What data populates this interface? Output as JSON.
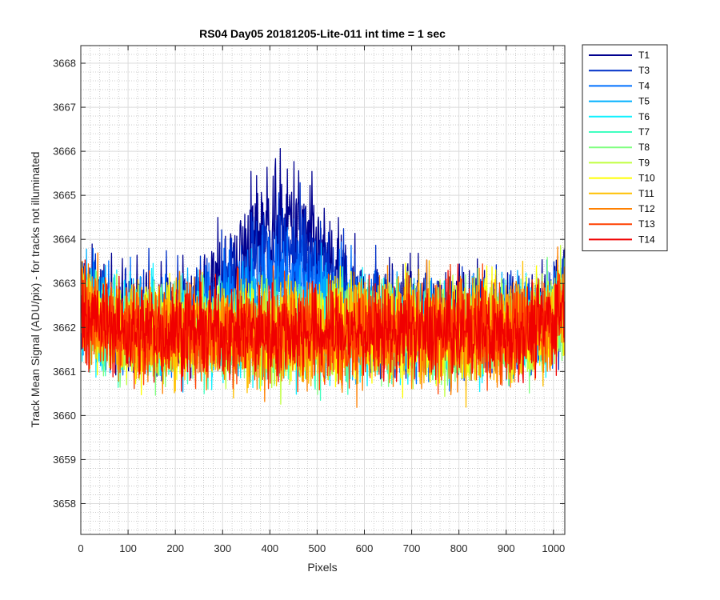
{
  "chart_data": {
    "type": "line",
    "title": "RS04 Day05 20181205-Lite-011 int time = 1 sec",
    "xlabel": "Pixels",
    "ylabel": "Track Mean Signal (ADU/pix) - for tracks not illuminated",
    "xlim": [
      0,
      1024
    ],
    "ylim": [
      3657.3,
      3668.4
    ],
    "x_ticks": [
      0,
      100,
      200,
      300,
      400,
      500,
      600,
      700,
      800,
      900,
      1000
    ],
    "y_ticks": [
      3658,
      3659,
      3660,
      3661,
      3662,
      3663,
      3664,
      3665,
      3666,
      3667,
      3668
    ],
    "grid": "major and minor",
    "legend_position": "outside-top-right",
    "x": {
      "start": 1,
      "end": 1024,
      "step": 1
    },
    "series": [
      {
        "name": "T1",
        "color": "#00008f",
        "mean": 3662.2,
        "noise": 1.1,
        "hump": 2.4
      },
      {
        "name": "T3",
        "color": "#0030c8",
        "mean": 3662.1,
        "noise": 1.05,
        "hump": 1.8
      },
      {
        "name": "T4",
        "color": "#0070ff",
        "mean": 3662.0,
        "noise": 1.0,
        "hump": 1.2
      },
      {
        "name": "T5",
        "color": "#00b0ff",
        "mean": 3662.0,
        "noise": 1.0,
        "hump": 0.4
      },
      {
        "name": "T6",
        "color": "#10f0ff",
        "mean": 3661.9,
        "noise": 1.0,
        "hump": 0.0
      },
      {
        "name": "T7",
        "color": "#40ffc0",
        "mean": 3661.9,
        "noise": 1.0,
        "hump": 0.0
      },
      {
        "name": "T8",
        "color": "#80ff80",
        "mean": 3661.9,
        "noise": 1.0,
        "hump": 0.0
      },
      {
        "name": "T9",
        "color": "#c0ff40",
        "mean": 3661.9,
        "noise": 1.0,
        "hump": 0.0
      },
      {
        "name": "T10",
        "color": "#ffff00",
        "mean": 3661.9,
        "noise": 1.0,
        "hump": 0.0
      },
      {
        "name": "T11",
        "color": "#ffc000",
        "mean": 3661.9,
        "noise": 1.0,
        "hump": 0.0
      },
      {
        "name": "T12",
        "color": "#ff8000",
        "mean": 3661.9,
        "noise": 1.05,
        "hump": 0.0
      },
      {
        "name": "T13",
        "color": "#ff4000",
        "mean": 3661.9,
        "noise": 1.0,
        "hump": 0.0
      },
      {
        "name": "T14",
        "color": "#f00000",
        "mean": 3661.9,
        "noise": 0.95,
        "hump": 0.0
      }
    ],
    "colors": {
      "axis": "#262626",
      "grid": "#dcdcdc",
      "minor_grid": "#c0c0c0"
    }
  }
}
